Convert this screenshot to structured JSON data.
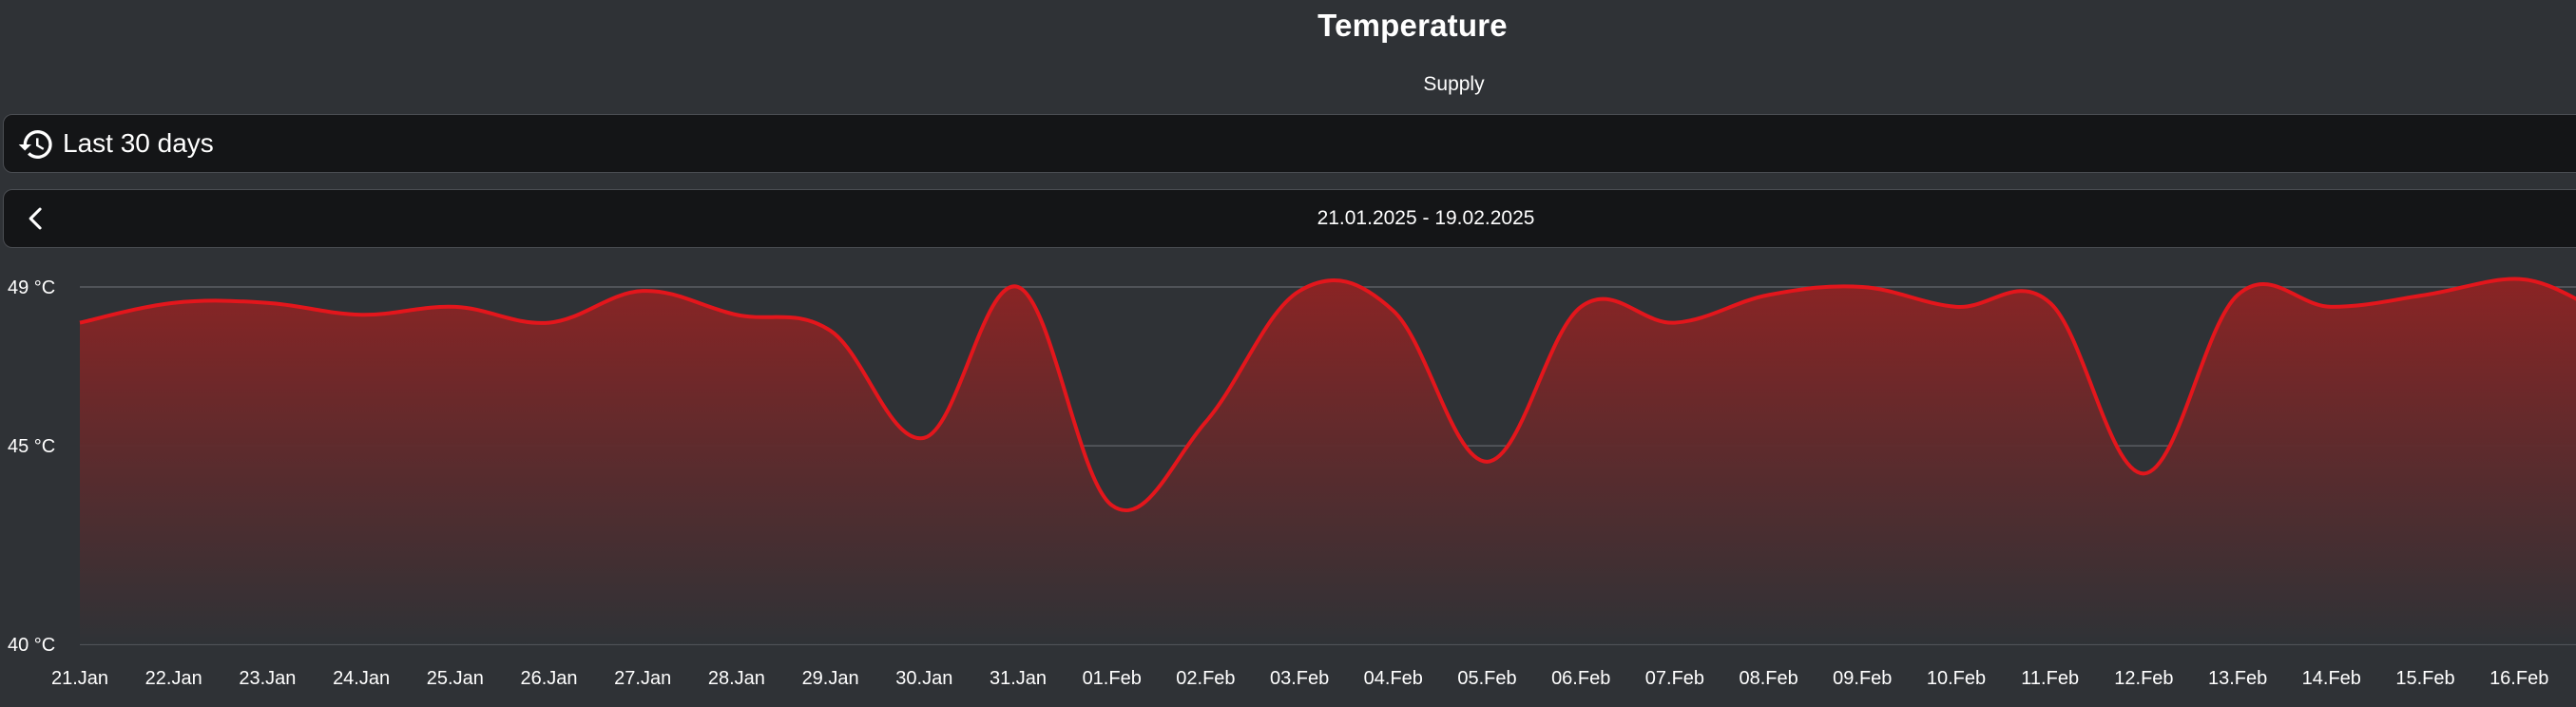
{
  "header": {
    "title": "Temperature",
    "subtitle": "Supply"
  },
  "range_selector": {
    "label": "Last 30 days",
    "icon": "history-icon"
  },
  "date_nav": {
    "range": "21.01.2025 - 19.02.2025",
    "back_icon": "chevron-left-icon"
  },
  "colors": {
    "background": "#2f3236",
    "line": "#e3161c",
    "fill_top": "#8b2424"
  },
  "chart_data": {
    "type": "area",
    "title": "Temperature",
    "subtitle": "Supply",
    "x": [
      "21.Jan",
      "22.Jan",
      "23.Jan",
      "24.Jan",
      "25.Jan",
      "26.Jan",
      "27.Jan",
      "28.Jan",
      "29.Jan",
      "30.Jan",
      "31.Jan",
      "01.Feb",
      "02.Feb",
      "03.Feb",
      "04.Feb",
      "05.Feb",
      "06.Feb",
      "07.Feb",
      "08.Feb",
      "09.Feb",
      "10.Feb",
      "11.Feb",
      "12.Feb",
      "13.Feb",
      "14.Feb",
      "15.Feb",
      "16.Feb"
    ],
    "series": [
      {
        "values": [
          48.1,
          48.6,
          48.6,
          48.3,
          48.5,
          48.1,
          48.9,
          48.3,
          47.9,
          45.2,
          49.0,
          43.5,
          45.6,
          48.9,
          48.4,
          44.6,
          48.5,
          48.1,
          48.8,
          49.0,
          48.5,
          48.6,
          44.3,
          48.8,
          48.5,
          48.8,
          49.2
        ]
      }
    ],
    "y_ticks": [
      {
        "value": 40,
        "label": "40 °C"
      },
      {
        "value": 45,
        "label": "45 °C"
      },
      {
        "value": 49,
        "label": "49 °C"
      }
    ],
    "grid": true,
    "legend": "none"
  }
}
